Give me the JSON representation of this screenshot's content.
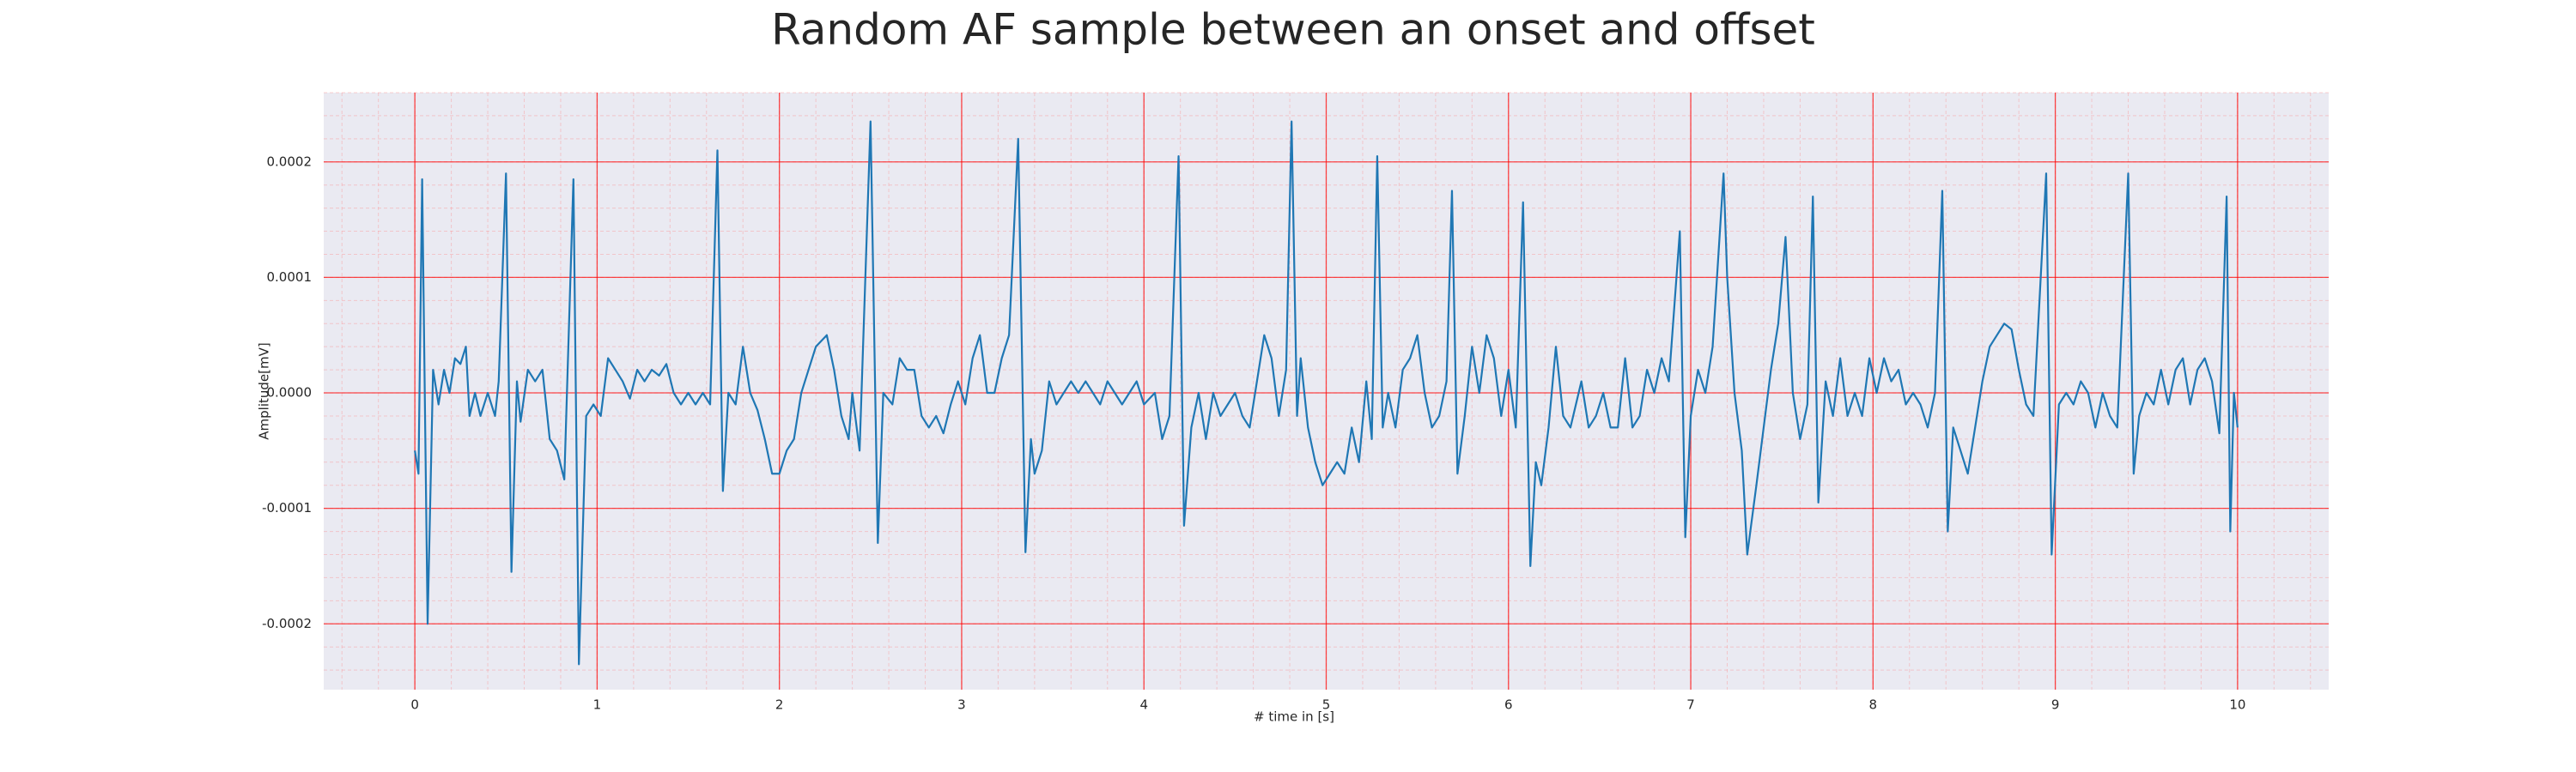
{
  "chart_data": {
    "type": "line",
    "title": "Random AF sample between an onset and offset",
    "xlabel": "# time in [s]",
    "ylabel": "Amplitude[mV]",
    "xlim": [
      -0.5,
      10.5
    ],
    "ylim": [
      -0.000257,
      0.00026
    ],
    "xticks": [
      0,
      1,
      2,
      3,
      4,
      5,
      6,
      7,
      8,
      9,
      10
    ],
    "yticks": [
      -0.0002,
      -0.0001,
      {
        "value": 0,
        "label": "0.0000"
      },
      0.0001,
      0.0002
    ],
    "grid": true,
    "minor_grid": true,
    "series": [
      {
        "color": "#1f77b4",
        "x": [
          0,
          0.02,
          0.04,
          0.07,
          0.1,
          0.13,
          0.16,
          0.19,
          0.22,
          0.25,
          0.28,
          0.3,
          0.33,
          0.36,
          0.4,
          0.44,
          0.46,
          0.5,
          0.53,
          0.56,
          0.58,
          0.62,
          0.66,
          0.7,
          0.74,
          0.78,
          0.82,
          0.87,
          0.9,
          0.94,
          0.98,
          1.02,
          1.06,
          1.1,
          1.14,
          1.18,
          1.22,
          1.26,
          1.3,
          1.34,
          1.38,
          1.42,
          1.46,
          1.5,
          1.54,
          1.58,
          1.62,
          1.66,
          1.69,
          1.72,
          1.76,
          1.8,
          1.84,
          1.88,
          1.92,
          1.96,
          2,
          2.04,
          2.08,
          2.12,
          2.16,
          2.2,
          2.26,
          2.3,
          2.34,
          2.38,
          2.4,
          2.44,
          2.5,
          2.54,
          2.57,
          2.62,
          2.66,
          2.7,
          2.74,
          2.78,
          2.82,
          2.86,
          2.9,
          2.94,
          2.98,
          3.02,
          3.06,
          3.1,
          3.14,
          3.18,
          3.22,
          3.26,
          3.31,
          3.35,
          3.38,
          3.4,
          3.44,
          3.48,
          3.52,
          3.56,
          3.6,
          3.64,
          3.68,
          3.72,
          3.76,
          3.8,
          3.84,
          3.88,
          3.92,
          3.96,
          4,
          4.06,
          4.1,
          4.14,
          4.19,
          4.22,
          4.26,
          4.3,
          4.34,
          4.38,
          4.42,
          4.46,
          4.5,
          4.54,
          4.58,
          4.62,
          4.66,
          4.7,
          4.74,
          4.78,
          4.81,
          4.84,
          4.86,
          4.9,
          4.94,
          4.98,
          5.02,
          5.06,
          5.1,
          5.14,
          5.18,
          5.22,
          5.25,
          5.28,
          5.31,
          5.34,
          5.38,
          5.42,
          5.46,
          5.5,
          5.54,
          5.58,
          5.62,
          5.66,
          5.69,
          5.72,
          5.76,
          5.8,
          5.84,
          5.88,
          5.92,
          5.96,
          6,
          6.04,
          6.08,
          6.12,
          6.15,
          6.18,
          6.22,
          6.26,
          6.3,
          6.34,
          6.4,
          6.44,
          6.48,
          6.52,
          6.56,
          6.6,
          6.64,
          6.68,
          6.72,
          6.76,
          6.8,
          6.84,
          6.88,
          6.94,
          6.97,
          7,
          7.04,
          7.08,
          7.12,
          7.18,
          7.2,
          7.24,
          7.28,
          7.31,
          7.36,
          7.4,
          7.44,
          7.48,
          7.52,
          7.56,
          7.6,
          7.64,
          7.67,
          7.7,
          7.74,
          7.78,
          7.82,
          7.86,
          7.9,
          7.94,
          7.98,
          8.02,
          8.06,
          8.1,
          8.14,
          8.18,
          8.22,
          8.26,
          8.3,
          8.34,
          8.38,
          8.41,
          8.44,
          8.48,
          8.52,
          8.56,
          8.6,
          8.64,
          8.68,
          8.72,
          8.76,
          8.8,
          8.84,
          8.88,
          8.95,
          8.98,
          9.02,
          9.06,
          9.1,
          9.14,
          9.18,
          9.22,
          9.26,
          9.3,
          9.34,
          9.4,
          9.43,
          9.46,
          9.5,
          9.54,
          9.58,
          9.62,
          9.66,
          9.7,
          9.74,
          9.78,
          9.82,
          9.86,
          9.9,
          9.94,
          9.96,
          9.98,
          10
        ],
        "values": [
          -5e-05,
          -7e-05,
          0.000185,
          -0.0002,
          2e-05,
          -1e-05,
          2e-05,
          0,
          3e-05,
          2.5e-05,
          4e-05,
          -2e-05,
          0,
          -2e-05,
          0,
          -2e-05,
          1e-05,
          0.00019,
          -0.000155,
          1e-05,
          -2.5e-05,
          2e-05,
          1e-05,
          2e-05,
          -4e-05,
          -5e-05,
          -7.5e-05,
          0.000185,
          -0.000235,
          -2e-05,
          -1e-05,
          -2e-05,
          3e-05,
          2e-05,
          1e-05,
          -5e-06,
          2e-05,
          1e-05,
          2e-05,
          1.5e-05,
          2.5e-05,
          0,
          -1e-05,
          0,
          -1e-05,
          0,
          -1e-05,
          0.00021,
          -8.5e-05,
          0,
          -1e-05,
          4e-05,
          0,
          -1.5e-05,
          -4e-05,
          -7e-05,
          -7e-05,
          -5e-05,
          -4e-05,
          0,
          2e-05,
          4e-05,
          5e-05,
          2e-05,
          -2e-05,
          -4e-05,
          0,
          -5e-05,
          0.000235,
          -0.00013,
          0,
          -1e-05,
          3e-05,
          2e-05,
          2e-05,
          -2e-05,
          -3e-05,
          -2e-05,
          -3.5e-05,
          -1e-05,
          1e-05,
          -1e-05,
          3e-05,
          5e-05,
          0,
          0,
          3e-05,
          5e-05,
          0.00022,
          -0.000138,
          -4e-05,
          -7e-05,
          -5e-05,
          1e-05,
          -1e-05,
          0,
          1e-05,
          0,
          1e-05,
          0,
          -1e-05,
          1e-05,
          0,
          -1e-05,
          0,
          1e-05,
          -1e-05,
          0,
          -4e-05,
          -2e-05,
          0.000205,
          -0.000115,
          -3e-05,
          0,
          -4e-05,
          0,
          -2e-05,
          -1e-05,
          0,
          -2e-05,
          -3e-05,
          1e-05,
          5e-05,
          3e-05,
          -2e-05,
          2e-05,
          0.000235,
          -2e-05,
          3e-05,
          -3e-05,
          -6e-05,
          -8e-05,
          -7e-05,
          -6e-05,
          -7e-05,
          -3e-05,
          -6e-05,
          1e-05,
          -4e-05,
          0.000205,
          -3e-05,
          0,
          -3e-05,
          2e-05,
          3e-05,
          5e-05,
          0,
          -3e-05,
          -2e-05,
          1e-05,
          0.000175,
          -7e-05,
          -2e-05,
          4e-05,
          0,
          5e-05,
          3e-05,
          -2e-05,
          2e-05,
          -3e-05,
          0.000165,
          -0.00015,
          -6e-05,
          -8e-05,
          -3e-05,
          4e-05,
          -2e-05,
          -3e-05,
          1e-05,
          -3e-05,
          -2e-05,
          0,
          -3e-05,
          -3e-05,
          3e-05,
          -3e-05,
          -2e-05,
          2e-05,
          0,
          3e-05,
          1e-05,
          0.00014,
          -0.000125,
          -2e-05,
          2e-05,
          0,
          4e-05,
          0.00019,
          0.0001,
          0,
          -5e-05,
          -0.00014,
          -8e-05,
          -3e-05,
          2e-05,
          6e-05,
          0.000135,
          0,
          -4e-05,
          -1e-05,
          0.00017,
          -9.5e-05,
          1e-05,
          -2e-05,
          3e-05,
          -2e-05,
          0,
          -2e-05,
          3e-05,
          0,
          3e-05,
          1e-05,
          2e-05,
          -1e-05,
          0,
          -1e-05,
          -3e-05,
          0,
          0.000175,
          -0.00012,
          -3e-05,
          -5e-05,
          -7e-05,
          -3e-05,
          1e-05,
          4e-05,
          5e-05,
          6e-05,
          5.5e-05,
          2e-05,
          -1e-05,
          -2e-05,
          0.00019,
          -0.00014,
          -1e-05,
          0,
          -1e-05,
          1e-05,
          0,
          -3e-05,
          0,
          -2e-05,
          -3e-05,
          0.00019,
          -7e-05,
          -2e-05,
          0,
          -1e-05,
          2e-05,
          -1e-05,
          2e-05,
          3e-05,
          -1e-05,
          2e-05,
          3e-05,
          1e-05,
          -3.5e-05,
          0.00017,
          -0.00012,
          0,
          -3e-05
        ]
      }
    ]
  }
}
